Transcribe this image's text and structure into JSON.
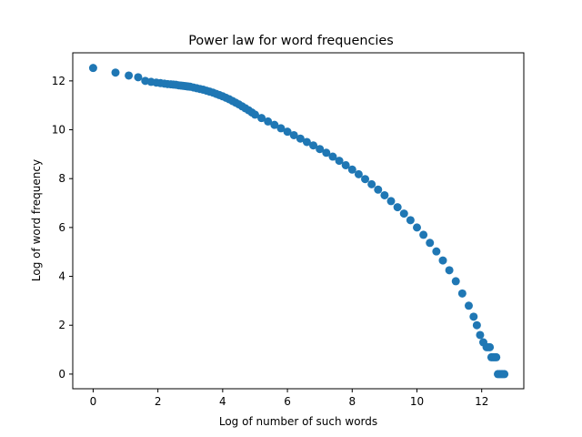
{
  "chart_data": {
    "type": "scatter",
    "title": "Power law for word frequencies",
    "xlabel": "Log of number of such words",
    "ylabel": "Log of word frequency",
    "xlim": [
      -0.63,
      13.3
    ],
    "ylim": [
      -0.6,
      13.15
    ],
    "xticks": [
      "0",
      "2",
      "4",
      "6",
      "8",
      "10",
      "12"
    ],
    "yticks": [
      "0",
      "2",
      "4",
      "6",
      "8",
      "10",
      "12"
    ],
    "grid": false,
    "legend": "none",
    "marker_color": "#1f77b4",
    "series": [
      {
        "points": [
          [
            0.0,
            12.53
          ],
          [
            0.69,
            12.34
          ],
          [
            1.1,
            12.22
          ],
          [
            1.39,
            12.15
          ],
          [
            1.61,
            12.0
          ],
          [
            1.79,
            11.96
          ],
          [
            1.95,
            11.93
          ],
          [
            2.08,
            11.91
          ],
          [
            2.2,
            11.89
          ],
          [
            2.3,
            11.87
          ],
          [
            2.4,
            11.86
          ],
          [
            2.48,
            11.85
          ],
          [
            2.56,
            11.84
          ],
          [
            2.64,
            11.82
          ],
          [
            2.71,
            11.81
          ],
          [
            2.77,
            11.8
          ],
          [
            2.83,
            11.79
          ],
          [
            2.89,
            11.78
          ],
          [
            2.94,
            11.77
          ],
          [
            3.0,
            11.76
          ],
          [
            3.1,
            11.73
          ],
          [
            3.2,
            11.7
          ],
          [
            3.3,
            11.67
          ],
          [
            3.4,
            11.64
          ],
          [
            3.5,
            11.6
          ],
          [
            3.6,
            11.56
          ],
          [
            3.7,
            11.52
          ],
          [
            3.8,
            11.47
          ],
          [
            3.9,
            11.42
          ],
          [
            4.0,
            11.37
          ],
          [
            4.1,
            11.31
          ],
          [
            4.2,
            11.25
          ],
          [
            4.3,
            11.18
          ],
          [
            4.4,
            11.11
          ],
          [
            4.5,
            11.04
          ],
          [
            4.6,
            10.96
          ],
          [
            4.7,
            10.88
          ],
          [
            4.8,
            10.8
          ],
          [
            4.9,
            10.71
          ],
          [
            5.0,
            10.62
          ],
          [
            5.2,
            10.48
          ],
          [
            5.4,
            10.34
          ],
          [
            5.6,
            10.2
          ],
          [
            5.8,
            10.06
          ],
          [
            6.0,
            9.92
          ],
          [
            6.2,
            9.78
          ],
          [
            6.4,
            9.64
          ],
          [
            6.6,
            9.5
          ],
          [
            6.8,
            9.36
          ],
          [
            7.0,
            9.21
          ],
          [
            7.2,
            9.06
          ],
          [
            7.4,
            8.9
          ],
          [
            7.6,
            8.73
          ],
          [
            7.8,
            8.55
          ],
          [
            8.0,
            8.37
          ],
          [
            8.2,
            8.18
          ],
          [
            8.4,
            7.98
          ],
          [
            8.6,
            7.77
          ],
          [
            8.8,
            7.55
          ],
          [
            9.0,
            7.32
          ],
          [
            9.2,
            7.08
          ],
          [
            9.4,
            6.83
          ],
          [
            9.6,
            6.57
          ],
          [
            9.8,
            6.3
          ],
          [
            10.0,
            6.0
          ],
          [
            10.2,
            5.7
          ],
          [
            10.4,
            5.37
          ],
          [
            10.6,
            5.02
          ],
          [
            10.8,
            4.65
          ],
          [
            11.0,
            4.25
          ],
          [
            11.2,
            3.8
          ],
          [
            11.4,
            3.3
          ],
          [
            11.6,
            2.8
          ],
          [
            11.75,
            2.35
          ],
          [
            11.85,
            2.0
          ],
          [
            11.95,
            1.6
          ],
          [
            12.05,
            1.3
          ],
          [
            12.15,
            1.1
          ],
          [
            12.2,
            1.1
          ],
          [
            12.25,
            1.1
          ],
          [
            12.3,
            0.69
          ],
          [
            12.35,
            0.69
          ],
          [
            12.4,
            0.69
          ],
          [
            12.45,
            0.69
          ],
          [
            12.5,
            0.0
          ],
          [
            12.55,
            0.0
          ],
          [
            12.6,
            0.0
          ],
          [
            12.65,
            0.0
          ],
          [
            12.7,
            0.0
          ]
        ]
      }
    ]
  }
}
